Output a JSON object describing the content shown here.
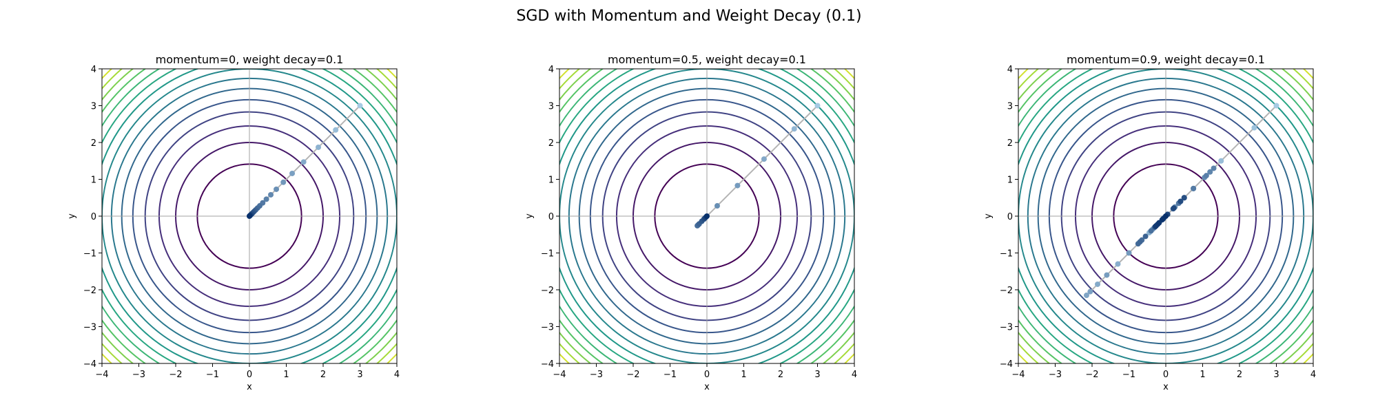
{
  "figure_title": "SGD with Momentum and Weight Decay (0.1)",
  "chart_data": [
    {
      "type": "line",
      "title": "momentum=0, weight decay=0.1",
      "xlabel": "x",
      "ylabel": "y",
      "xlim": [
        -4,
        4
      ],
      "ylim": [
        -4,
        4
      ],
      "xticks": [
        "−4",
        "−3",
        "−2",
        "−1",
        "0",
        "1",
        "2",
        "3",
        "4"
      ],
      "yticks": [
        "−4",
        "−3",
        "−2",
        "−1",
        "0",
        "1",
        "2",
        "3",
        "4"
      ],
      "contours": "concentric circles, f = x² + y², levels 2 to 32 step 2",
      "trajectory": {
        "x": [
          3.0,
          2.34,
          1.87,
          1.47,
          1.16,
          0.92,
          0.73,
          0.58,
          0.46,
          0.36,
          0.28,
          0.22,
          0.17,
          0.13,
          0.1,
          0.07,
          0.05,
          0.03,
          0.02,
          0.01,
          0.0
        ],
        "y": [
          3.0,
          2.34,
          1.87,
          1.47,
          1.16,
          0.92,
          0.73,
          0.58,
          0.46,
          0.36,
          0.28,
          0.22,
          0.17,
          0.13,
          0.1,
          0.07,
          0.05,
          0.03,
          0.02,
          0.01,
          0.0
        ]
      }
    },
    {
      "type": "line",
      "title": "momentum=0.5, weight decay=0.1",
      "xlabel": "x",
      "ylabel": "y",
      "xlim": [
        -4,
        4
      ],
      "ylim": [
        -4,
        4
      ],
      "xticks": [
        "−4",
        "−3",
        "−2",
        "−1",
        "0",
        "1",
        "2",
        "3",
        "4"
      ],
      "yticks": [
        "−4",
        "−3",
        "−2",
        "−1",
        "0",
        "1",
        "2",
        "3",
        "4"
      ],
      "contours": "concentric circles, f = x² + y², levels 2 to 32 step 2",
      "trajectory": {
        "x": [
          3.0,
          2.37,
          1.55,
          0.83,
          0.28,
          -0.08,
          -0.24,
          -0.26,
          -0.21,
          -0.14,
          -0.08,
          -0.04,
          -0.01,
          0.0
        ],
        "y": [
          3.0,
          2.37,
          1.55,
          0.83,
          0.28,
          -0.08,
          -0.24,
          -0.26,
          -0.21,
          -0.14,
          -0.08,
          -0.04,
          -0.01,
          0.0
        ]
      }
    },
    {
      "type": "line",
      "title": "momentum=0.9, weight decay=0.1",
      "xlabel": "x",
      "ylabel": "y",
      "xlim": [
        -4,
        4
      ],
      "ylim": [
        -4,
        4
      ],
      "xticks": [
        "−4",
        "−3",
        "−2",
        "−1",
        "0",
        "1",
        "2",
        "3",
        "4"
      ],
      "yticks": [
        "−4",
        "−3",
        "−2",
        "−1",
        "0",
        "1",
        "2",
        "3",
        "4"
      ],
      "contours": "concentric circles, f = x² + y², levels 2 to 32 step 2",
      "trajectory": {
        "x": [
          3.0,
          2.4,
          1.5,
          0.5,
          -0.45,
          -1.3,
          -1.85,
          -2.15,
          -2.05,
          -1.6,
          -1.0,
          -0.35,
          0.25,
          0.75,
          1.05,
          1.2,
          1.3,
          1.1,
          0.75,
          0.35,
          -0.05,
          -0.4,
          -0.65,
          -0.75,
          -0.7,
          -0.55,
          -0.3,
          -0.05,
          0.2,
          0.4,
          0.5,
          0.5,
          0.4,
          0.22,
          0.05,
          -0.1,
          -0.22,
          -0.28,
          -0.26,
          -0.18,
          -0.08,
          0.0
        ],
        "y": [
          3.0,
          2.4,
          1.5,
          0.5,
          -0.45,
          -1.3,
          -1.85,
          -2.15,
          -2.05,
          -1.6,
          -1.0,
          -0.35,
          0.25,
          0.75,
          1.05,
          1.2,
          1.3,
          1.1,
          0.75,
          0.35,
          -0.05,
          -0.4,
          -0.65,
          -0.75,
          -0.7,
          -0.55,
          -0.3,
          -0.05,
          0.2,
          0.4,
          0.5,
          0.5,
          0.4,
          0.22,
          0.05,
          -0.1,
          -0.22,
          -0.28,
          -0.26,
          -0.18,
          -0.08,
          0.0
        ]
      }
    }
  ],
  "colors": {
    "contour_levels": [
      "#440154",
      "#46327e",
      "#365c8d",
      "#277f8e",
      "#1fa187",
      "#4ac16d",
      "#a0da39",
      "#fde725"
    ],
    "trajectory_line": "#b4b4b4",
    "point_start": "#a6cbe3",
    "point_end": "#08306b",
    "axis_lines": "#a0a0a0"
  }
}
